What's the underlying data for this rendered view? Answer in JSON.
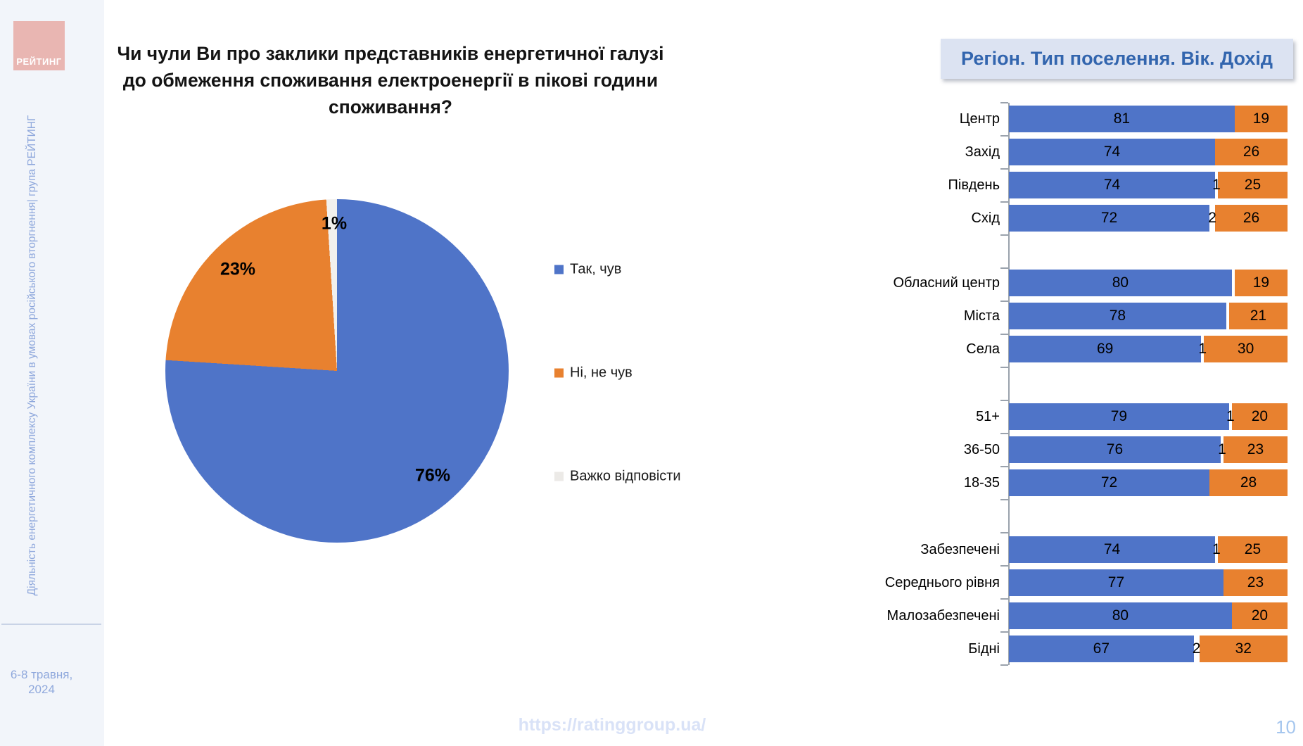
{
  "sidebar": {
    "logo_text": "РЕЙТИНГ",
    "vertical_text": "Діяльність енергетичного комплексу України в умовах російського вторгнення| група РЕЙТИНГ",
    "date_line1": "6-8 травня,",
    "date_line2": "2024"
  },
  "title": "Чи чули Ви про заклики представників енергетичної галузі до обмеження споживання електроенергії в пікові години споживання?",
  "footer": {
    "url": "https://ratinggroup.ua/",
    "page": "10"
  },
  "colors": {
    "yes_blue": "#4F74C8",
    "no_orange": "#E8812F",
    "dk_white_pie": "#F2F0ED",
    "dk_white_bar": "#FFFFFF",
    "legend_dk_square": "#ECEAE7",
    "header_text": "#3265AE",
    "header_bg": "#DCE3F2"
  },
  "chart_data": [
    {
      "type": "pie",
      "start_angle_deg": 0,
      "direction": "clockwise",
      "slices": [
        {
          "name": "Так, чув",
          "value": 76,
          "label": "76%",
          "color_key": "yes_blue"
        },
        {
          "name": "Ні, не чув",
          "value": 23,
          "label": "23%",
          "color_key": "no_orange"
        },
        {
          "name": "Важко відповісти",
          "value": 1,
          "label": "1%",
          "color_key": "dk_white_pie"
        }
      ],
      "legend": [
        {
          "label": "Так, чув",
          "color": "#4F74C8"
        },
        {
          "label": "Ні, не чув",
          "color": "#E8812F"
        },
        {
          "label": "Важко відповісти",
          "color": "#ECEAE7"
        }
      ],
      "legend_position": "right"
    },
    {
      "type": "bar",
      "variant": "horizontal-stacked",
      "title": "Регіон. Тип поселення. Вік. Дохід",
      "series_names": [
        "Так, чув",
        "Важко відповісти",
        "Ні, не чув"
      ],
      "xlim": [
        0,
        100
      ],
      "groups": [
        {
          "rows": [
            {
              "label": "Центр",
              "yes": 81,
              "dk": 0,
              "no": 19,
              "dk_label": ""
            },
            {
              "label": "Захід",
              "yes": 74,
              "dk": 0,
              "no": 26,
              "dk_label": ""
            },
            {
              "label": "Південь",
              "yes": 74,
              "dk": 1,
              "no": 25,
              "dk_label": "1"
            },
            {
              "label": "Схід",
              "yes": 72,
              "dk": 2,
              "no": 26,
              "dk_label": "2"
            }
          ]
        },
        {
          "rows": [
            {
              "label": "Обласний центр",
              "yes": 80,
              "dk": 1,
              "no": 19,
              "dk_label": ""
            },
            {
              "label": "Міста",
              "yes": 78,
              "dk": 1,
              "no": 21,
              "dk_label": ""
            },
            {
              "label": "Села",
              "yes": 69,
              "dk": 1,
              "no": 30,
              "dk_label": "1"
            }
          ]
        },
        {
          "rows": [
            {
              "label": "51+",
              "yes": 79,
              "dk": 1,
              "no": 20,
              "dk_label": "1"
            },
            {
              "label": "36-50",
              "yes": 76,
              "dk": 1,
              "no": 23,
              "dk_label": "1"
            },
            {
              "label": "18-35",
              "yes": 72,
              "dk": 0,
              "no": 28,
              "dk_label": ""
            }
          ]
        },
        {
          "rows": [
            {
              "label": "Забезпечені",
              "yes": 74,
              "dk": 1,
              "no": 25,
              "dk_label": "1"
            },
            {
              "label": "Середнього рівня",
              "yes": 77,
              "dk": 0,
              "no": 23,
              "dk_label": ""
            },
            {
              "label": "Малозабезпечені",
              "yes": 80,
              "dk": 0,
              "no": 20,
              "dk_label": ""
            },
            {
              "label": "Бідні",
              "yes": 67,
              "dk": 2,
              "no": 32,
              "dk_label": "2"
            }
          ]
        }
      ]
    }
  ]
}
